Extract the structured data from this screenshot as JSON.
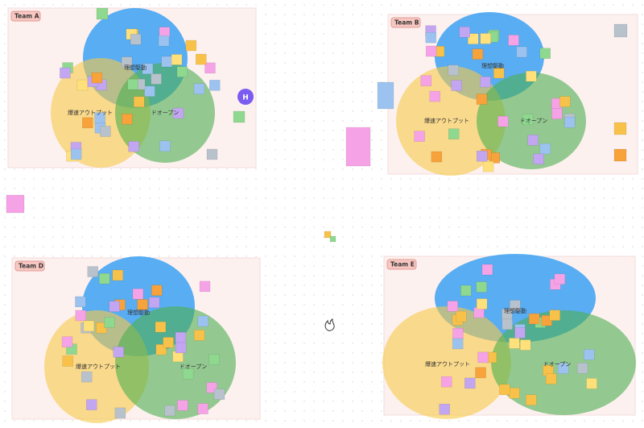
{
  "frames": [
    {
      "title": "Team A",
      "circles": [
        "理想駆動",
        "爆速アウトプット",
        "ドオープン"
      ]
    },
    {
      "title": "Team B",
      "circles": [
        "理想駆動",
        "爆速アウトプット",
        "ドオープン"
      ]
    },
    {
      "title": "Team D",
      "circles": [
        "理想駆動",
        "爆速アウトプット",
        "ドオープン"
      ]
    },
    {
      "title": "Team E",
      "circles": [
        "理想駆動",
        "爆速アウトプット",
        "ドオープン"
      ]
    }
  ],
  "avatar": "H"
}
